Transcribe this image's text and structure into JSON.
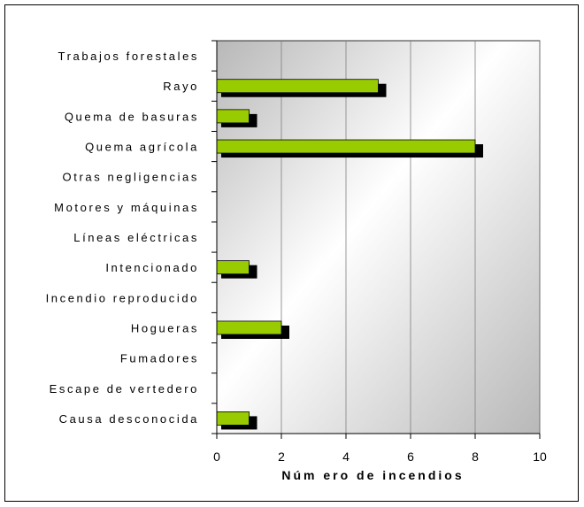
{
  "chart_data": {
    "type": "bar",
    "orientation": "horizontal",
    "categories": [
      "Trabajos forestales",
      "Rayo",
      "Quema de basuras",
      "Quema agrícola",
      "Otras negligencias",
      "Motores y máquinas",
      "Líneas eléctricas",
      "Intencionado",
      "Incendio reproducido",
      "Hogueras",
      "Fumadores",
      "Escape de vertedero",
      "Causa desconocida"
    ],
    "values": [
      0,
      5,
      1,
      8,
      0,
      0,
      0,
      1,
      0,
      2,
      0,
      0,
      1
    ],
    "xlabel": "Núm ero de incendios",
    "ylabel": "",
    "xlim": [
      0,
      10
    ],
    "xticks": [
      "0",
      "2",
      "4",
      "6",
      "8",
      "10"
    ],
    "grid": "vertical",
    "legend": "none",
    "colors": {
      "bar": "#99cc00",
      "bar_edge": "#000000",
      "bar_shadow": "#000000",
      "plot_bg_light": "#ffffff",
      "plot_bg_dark": "#b8b8b8",
      "gridline": "#7f7f7f"
    }
  }
}
